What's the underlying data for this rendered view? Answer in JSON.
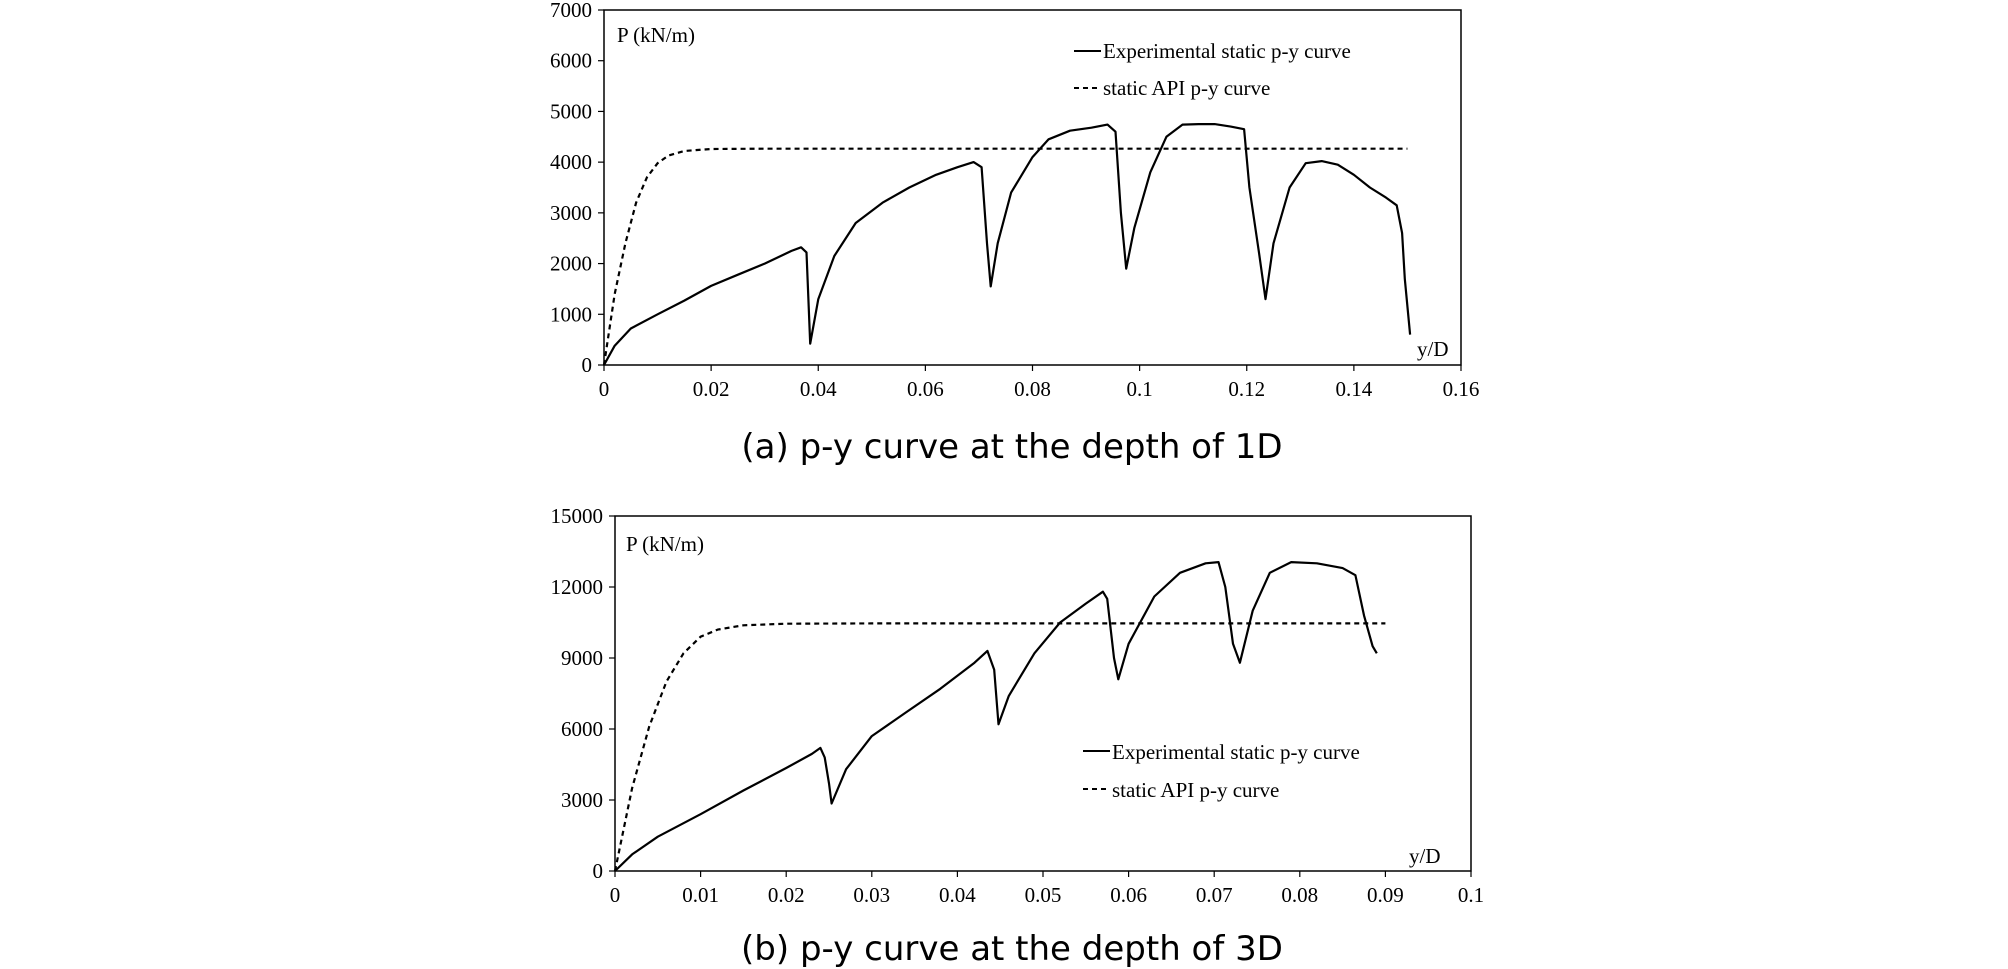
{
  "chart_data": [
    {
      "type": "line",
      "caption": "(a) p-y curve at the depth of 1D",
      "ylabel": "P (kN/m)",
      "xlabel": "y/D",
      "xlim": [
        0,
        0.16
      ],
      "ylim": [
        0,
        7000
      ],
      "xticks": [
        "0",
        "0.02",
        "0.04",
        "0.06",
        "0.08",
        "0.1",
        "0.12",
        "0.14",
        "0.16"
      ],
      "yticks": [
        "0",
        "1000",
        "2000",
        "3000",
        "4000",
        "5000",
        "6000",
        "7000"
      ],
      "grid": false,
      "legend_position": "top-right",
      "series": [
        {
          "name": "Experimental static p-y curve",
          "style": "solid",
          "color": "#000000",
          "points": [
            [
              0,
              0
            ],
            [
              0.002,
              380
            ],
            [
              0.005,
              720
            ],
            [
              0.01,
              1000
            ],
            [
              0.015,
              1270
            ],
            [
              0.02,
              1560
            ],
            [
              0.025,
              1780
            ],
            [
              0.03,
              2000
            ],
            [
              0.035,
              2250
            ],
            [
              0.0368,
              2320
            ],
            [
              0.0378,
              2220
            ],
            [
              0.0385,
              420
            ],
            [
              0.04,
              1300
            ],
            [
              0.043,
              2150
            ],
            [
              0.047,
              2800
            ],
            [
              0.052,
              3200
            ],
            [
              0.057,
              3500
            ],
            [
              0.062,
              3750
            ],
            [
              0.066,
              3900
            ],
            [
              0.069,
              4000
            ],
            [
              0.0705,
              3900
            ],
            [
              0.0715,
              2400
            ],
            [
              0.0722,
              1550
            ],
            [
              0.0735,
              2400
            ],
            [
              0.076,
              3400
            ],
            [
              0.08,
              4100
            ],
            [
              0.083,
              4450
            ],
            [
              0.087,
              4620
            ],
            [
              0.091,
              4680
            ],
            [
              0.094,
              4740
            ],
            [
              0.0955,
              4600
            ],
            [
              0.0965,
              3000
            ],
            [
              0.0975,
              1900
            ],
            [
              0.099,
              2700
            ],
            [
              0.102,
              3800
            ],
            [
              0.105,
              4500
            ],
            [
              0.108,
              4740
            ],
            [
              0.111,
              4750
            ],
            [
              0.114,
              4750
            ],
            [
              0.117,
              4700
            ],
            [
              0.1195,
              4650
            ],
            [
              0.1205,
              3500
            ],
            [
              0.1223,
              2200
            ],
            [
              0.1235,
              1300
            ],
            [
              0.125,
              2400
            ],
            [
              0.128,
              3500
            ],
            [
              0.131,
              3980
            ],
            [
              0.134,
              4020
            ],
            [
              0.137,
              3950
            ],
            [
              0.14,
              3750
            ],
            [
              0.143,
              3500
            ],
            [
              0.146,
              3300
            ],
            [
              0.148,
              3150
            ],
            [
              0.149,
              2600
            ],
            [
              0.1495,
              1700
            ],
            [
              0.1505,
              600
            ]
          ]
        },
        {
          "name": "static API p-y curve",
          "style": "dashed",
          "color": "#000000",
          "points": [
            [
              0,
              0
            ],
            [
              0.002,
              1400
            ],
            [
              0.004,
              2400
            ],
            [
              0.006,
              3200
            ],
            [
              0.008,
              3700
            ],
            [
              0.01,
              3980
            ],
            [
              0.012,
              4130
            ],
            [
              0.015,
              4220
            ],
            [
              0.02,
              4260
            ],
            [
              0.03,
              4265
            ],
            [
              0.05,
              4265
            ],
            [
              0.08,
              4265
            ],
            [
              0.1,
              4265
            ],
            [
              0.12,
              4265
            ],
            [
              0.15,
              4265
            ]
          ]
        }
      ]
    },
    {
      "type": "line",
      "caption": "(b) p-y curve at the depth of 3D",
      "ylabel": "P (kN/m)",
      "xlabel": "y/D",
      "xlim": [
        0,
        0.1
      ],
      "ylim": [
        0,
        15000
      ],
      "xticks": [
        "0",
        "0.01",
        "0.02",
        "0.03",
        "0.04",
        "0.05",
        "0.06",
        "0.07",
        "0.08",
        "0.09",
        "0.1"
      ],
      "yticks": [
        "0",
        "3000",
        "6000",
        "9000",
        "12000",
        "15000"
      ],
      "grid": false,
      "legend_position": "center-right",
      "series": [
        {
          "name": "Experimental static p-y curve",
          "style": "solid",
          "color": "#000000",
          "points": [
            [
              0,
              0
            ],
            [
              0.002,
              700
            ],
            [
              0.005,
              1450
            ],
            [
              0.01,
              2400
            ],
            [
              0.015,
              3400
            ],
            [
              0.02,
              4350
            ],
            [
              0.023,
              4950
            ],
            [
              0.024,
              5200
            ],
            [
              0.0245,
              4800
            ],
            [
              0.025,
              3700
            ],
            [
              0.0253,
              2850
            ],
            [
              0.027,
              4300
            ],
            [
              0.03,
              5700
            ],
            [
              0.034,
              6700
            ],
            [
              0.038,
              7700
            ],
            [
              0.042,
              8800
            ],
            [
              0.0435,
              9300
            ],
            [
              0.0443,
              8500
            ],
            [
              0.0448,
              6200
            ],
            [
              0.046,
              7400
            ],
            [
              0.049,
              9200
            ],
            [
              0.052,
              10500
            ],
            [
              0.055,
              11300
            ],
            [
              0.057,
              11800
            ],
            [
              0.0575,
              11500
            ],
            [
              0.0583,
              9000
            ],
            [
              0.0588,
              8100
            ],
            [
              0.06,
              9600
            ],
            [
              0.063,
              11600
            ],
            [
              0.066,
              12600
            ],
            [
              0.069,
              13000
            ],
            [
              0.0705,
              13050
            ],
            [
              0.0713,
              12000
            ],
            [
              0.0722,
              9600
            ],
            [
              0.073,
              8800
            ],
            [
              0.0745,
              11000
            ],
            [
              0.0765,
              12600
            ],
            [
              0.079,
              13050
            ],
            [
              0.082,
              13000
            ],
            [
              0.085,
              12800
            ],
            [
              0.0865,
              12500
            ],
            [
              0.0875,
              10800
            ],
            [
              0.0885,
              9500
            ],
            [
              0.089,
              9200
            ]
          ]
        },
        {
          "name": "static API p-y curve",
          "style": "dashed",
          "color": "#000000",
          "points": [
            [
              0,
              0
            ],
            [
              0.002,
              3500
            ],
            [
              0.004,
              6100
            ],
            [
              0.006,
              8000
            ],
            [
              0.008,
              9200
            ],
            [
              0.01,
              9900
            ],
            [
              0.012,
              10200
            ],
            [
              0.015,
              10380
            ],
            [
              0.02,
              10450
            ],
            [
              0.03,
              10460
            ],
            [
              0.05,
              10460
            ],
            [
              0.07,
              10460
            ],
            [
              0.09,
              10460
            ]
          ]
        }
      ]
    }
  ]
}
